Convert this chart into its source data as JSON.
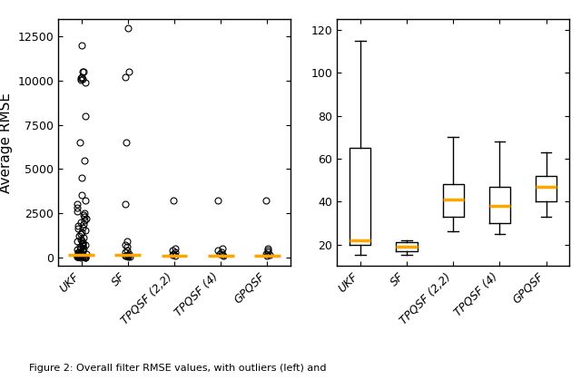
{
  "categories": [
    "UKF",
    "SF",
    "TPQSF (2,2)",
    "TPQSF (4)",
    "GPQSF"
  ],
  "ylabel": "Average RMSE",
  "left_plot": {
    "ylim": [
      -500,
      13500
    ],
    "yticks": [
      0,
      2500,
      5000,
      7500,
      10000,
      12500
    ],
    "scatter_data": {
      "UKF": [
        12000,
        10500,
        10500,
        10200,
        10150,
        10100,
        10050,
        9900,
        8000,
        6500,
        5500,
        4500,
        3500,
        3200,
        3000,
        2800,
        2600,
        2500,
        2400,
        2300,
        2200,
        2100,
        2000,
        1900,
        1800,
        1700,
        1600,
        1500,
        1400,
        1300,
        1200,
        1100,
        1000,
        950,
        900,
        850,
        800,
        750,
        700,
        650,
        600,
        550,
        500,
        450,
        400,
        350,
        300,
        280,
        260,
        240,
        220,
        200,
        180,
        160,
        140,
        120,
        100,
        90,
        80,
        70,
        60,
        50,
        40,
        30,
        20,
        15,
        10,
        8,
        6,
        4,
        2,
        1,
        0
      ],
      "SF": [
        13000,
        10500,
        10200,
        6500,
        3000,
        900,
        700,
        600,
        400,
        300,
        200,
        150,
        100,
        80,
        60,
        40,
        20
      ],
      "TPQSF22": [
        3200,
        500,
        400,
        300,
        200,
        150,
        100
      ],
      "TPQSF4": [
        3200,
        500,
        400,
        300,
        200,
        150,
        100
      ],
      "GPQSF": [
        3200,
        500,
        400,
        300,
        200,
        150,
        100
      ]
    },
    "medians": {
      "UKF": 150,
      "SF": 150,
      "TPQSF22": 100,
      "TPQSF4": 80,
      "GPQSF": 100
    }
  },
  "right_plot": {
    "ylim": [
      10,
      125
    ],
    "yticks": [
      20,
      40,
      60,
      80,
      100,
      120
    ],
    "box_stats": {
      "UKF": {
        "q1": 20,
        "median": 22,
        "q3": 65,
        "whislo": 15,
        "whishi": 115
      },
      "SF": {
        "q1": 17,
        "median": 19,
        "q3": 21,
        "whislo": 15,
        "whishi": 22
      },
      "TPQSF22": {
        "q1": 33,
        "median": 41,
        "q3": 48,
        "whislo": 26,
        "whishi": 70
      },
      "TPQSF4": {
        "q1": 30,
        "median": 38,
        "q3": 47,
        "whislo": 25,
        "whishi": 68
      },
      "GPQSF": {
        "q1": 40,
        "median": 47,
        "q3": 52,
        "whislo": 33,
        "whishi": 63
      }
    }
  },
  "median_color": "#FFA500",
  "flier_markersize": 5,
  "background_color": "white",
  "tick_label_fontsize": 9,
  "axis_label_fontsize": 11,
  "caption": "Figure 2: Overall filter RMSE values, with outliers (left) and"
}
